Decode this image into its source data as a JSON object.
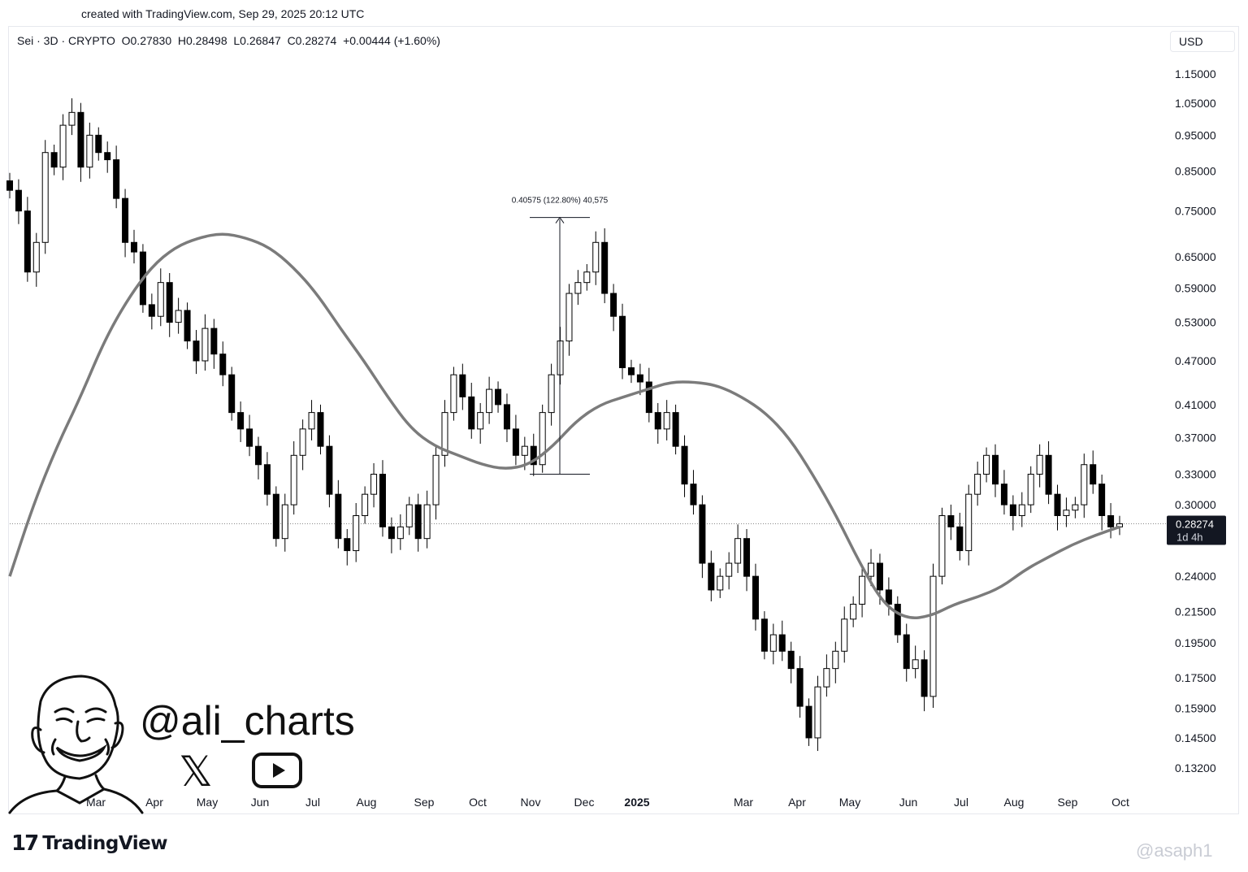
{
  "header": {
    "created_with": "created with TradingView.com, Sep 29, 2025 20:12 UTC",
    "symbol_line": "Sei · 3D · CRYPTO  O0.27830  H0.28498  L0.26847  C0.28274  +0.00444 (+1.60%)",
    "currency": "USD"
  },
  "branding": {
    "handle": "@ali_charts",
    "tv_logo_mark": "17",
    "tv_logo_name": "TradingView",
    "watermark": "@asaph1",
    "icons": [
      "x-logo-icon",
      "youtube-icon",
      "tradingview-logo-icon",
      "avatar-caricature-icon"
    ]
  },
  "chart_data": {
    "type": "line",
    "scale": "log",
    "series": [
      {
        "values": [
          0.8,
          0.75,
          0.62,
          0.68,
          0.9,
          0.86,
          0.98,
          1.02,
          0.86,
          0.95,
          0.9,
          0.88,
          0.78,
          0.68,
          0.66,
          0.56,
          0.54,
          0.6,
          0.53,
          0.55,
          0.5,
          0.47,
          0.52,
          0.48,
          0.45,
          0.4,
          0.38,
          0.36,
          0.34,
          0.31,
          0.27,
          0.3,
          0.35,
          0.38,
          0.4,
          0.36,
          0.31,
          0.27,
          0.26,
          0.29,
          0.31,
          0.33,
          0.28,
          0.27,
          0.28,
          0.3,
          0.27,
          0.3,
          0.35,
          0.4,
          0.45,
          0.42,
          0.38,
          0.4,
          0.43,
          0.41,
          0.38,
          0.35,
          0.36,
          0.34,
          0.4,
          0.45,
          0.5,
          0.58,
          0.6,
          0.62,
          0.68,
          0.58,
          0.54,
          0.46,
          0.45,
          0.44,
          0.4,
          0.38,
          0.4,
          0.36,
          0.32,
          0.3,
          0.25,
          0.23,
          0.24,
          0.25,
          0.27,
          0.24,
          0.21,
          0.19,
          0.2,
          0.19,
          0.18,
          0.16,
          0.145,
          0.17,
          0.18,
          0.19,
          0.21,
          0.22,
          0.24,
          0.25,
          0.23,
          0.22,
          0.2,
          0.18,
          0.185,
          0.165,
          0.24,
          0.29,
          0.28,
          0.26,
          0.31,
          0.33,
          0.35,
          0.32,
          0.3,
          0.29,
          0.3,
          0.33,
          0.35,
          0.31,
          0.29,
          0.295,
          0.3,
          0.34,
          0.32,
          0.29,
          0.28,
          0.2827
        ]
      },
      {
        "values": [
          0.24,
          0.3,
          0.36,
          0.42,
          0.5,
          0.57,
          0.63,
          0.67,
          0.69,
          0.7,
          0.69,
          0.67,
          0.63,
          0.58,
          0.52,
          0.47,
          0.42,
          0.38,
          0.36,
          0.35,
          0.34,
          0.335,
          0.34,
          0.36,
          0.39,
          0.41,
          0.42,
          0.43,
          0.44,
          0.44,
          0.435,
          0.42,
          0.4,
          0.37,
          0.33,
          0.29,
          0.25,
          0.22,
          0.21,
          0.212,
          0.22,
          0.225,
          0.232,
          0.245,
          0.255,
          0.265,
          0.273,
          0.28
        ]
      }
    ],
    "xticks": [
      "Mar",
      "Apr",
      "May",
      "Jun",
      "Jul",
      "Aug",
      "Sep",
      "Oct",
      "Nov",
      "Dec",
      "2025",
      "Mar",
      "Apr",
      "May",
      "Jun",
      "Jul",
      "Aug",
      "Sep",
      "Oct"
    ],
    "yticks": [
      "1.15000",
      "1.05000",
      "0.95000",
      "0.85000",
      "0.75000",
      "0.65000",
      "0.59000",
      "0.53000",
      "0.47000",
      "0.41000",
      "0.37000",
      "0.33000",
      "0.30000",
      "0.24000",
      "0.21500",
      "0.19500",
      "0.17500",
      "0.15900",
      "0.14500",
      "0.13200"
    ],
    "last_price_label": "0.28274",
    "last_price_value": 0.28274,
    "countdown_label": "1d 4h",
    "measure": {
      "label": "0.40575 (122.80%) 40,575",
      "from": 0.33,
      "to": 0.735
    },
    "colors": {
      "up": "#ffffff",
      "down": "#000000",
      "ma": "#7b7b7b",
      "last_price_bg": "#131722"
    }
  }
}
